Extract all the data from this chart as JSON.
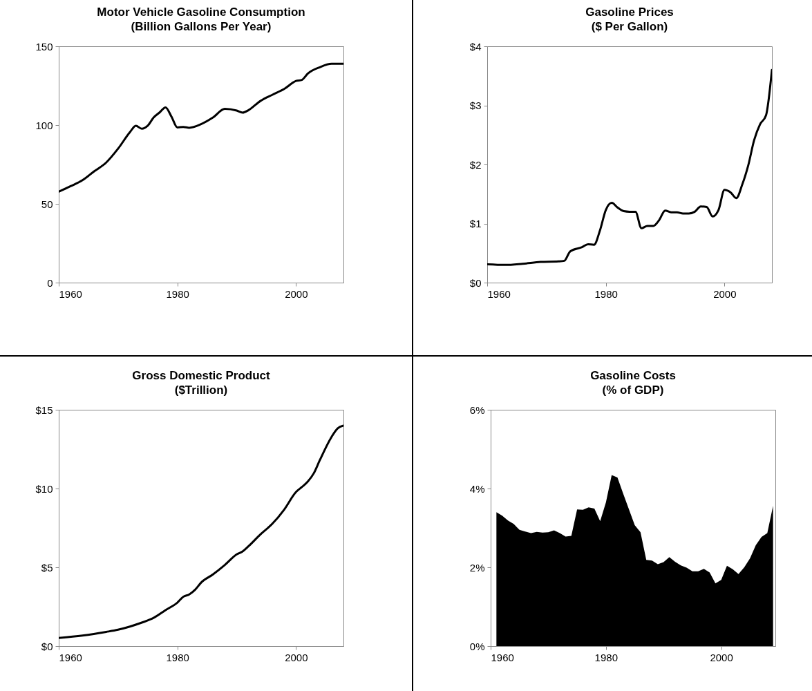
{
  "chart_data": [
    {
      "type": "line",
      "title": "Motor Vehicle Gasoline Consumption",
      "subtitle": "(Billion Gallons Per Year)",
      "xlim": [
        1960,
        2008
      ],
      "xticks": [
        1960,
        1980,
        2000
      ],
      "ylim": [
        0,
        150
      ],
      "yticks": [
        0,
        50,
        100,
        150
      ],
      "grid": false,
      "series": [
        {
          "color": "#000000",
          "x": [
            1960,
            1962,
            1964,
            1966,
            1968,
            1970,
            1972,
            1973,
            1974,
            1975,
            1976,
            1977,
            1978,
            1979,
            1980,
            1981,
            1982,
            1984,
            1986,
            1988,
            1990,
            1991,
            1992,
            1994,
            1996,
            1998,
            2000,
            2001,
            2002,
            2004,
            2006,
            2008
          ],
          "values": [
            57.7,
            61.2,
            65,
            70.7,
            76.2,
            85,
            95.5,
            99.6,
            97.7,
            99.6,
            104.8,
            108,
            111.2,
            105.4,
            98.5,
            98.8,
            98.3,
            100.6,
            104.8,
            110.3,
            109.2,
            107.9,
            109.5,
            115.3,
            119.2,
            122.9,
            128,
            128.7,
            132.7,
            136.7,
            138.9,
            138.9
          ]
        }
      ]
    },
    {
      "type": "line",
      "title": "Gasoline Prices",
      "subtitle": "($ Per Gallon)",
      "xlim": [
        1960,
        2008
      ],
      "xticks": [
        1960,
        1980,
        2000
      ],
      "ylim": [
        0,
        4
      ],
      "yticks": [
        {
          "value": 0,
          "label": "$0"
        },
        {
          "value": 1,
          "label": "$1"
        },
        {
          "value": 2,
          "label": "$2"
        },
        {
          "value": 3,
          "label": "$3"
        },
        {
          "value": 4,
          "label": "$4"
        }
      ],
      "grid": false,
      "series": [
        {
          "color": "#000000",
          "x": [
            1960,
            1963,
            1966,
            1969,
            1972,
            1973,
            1974,
            1976,
            1977,
            1978,
            1979,
            1980,
            1981,
            1982,
            1983,
            1984,
            1985,
            1986,
            1987,
            1988,
            1989,
            1990,
            1991,
            1992,
            1993,
            1994,
            1995,
            1996,
            1997,
            1998,
            1999,
            2000,
            2001,
            2002,
            2003,
            2004,
            2005,
            2006,
            2007,
            2008
          ],
          "values": [
            0.31,
            0.3,
            0.32,
            0.35,
            0.36,
            0.37,
            0.53,
            0.6,
            0.65,
            0.64,
            0.88,
            1.23,
            1.35,
            1.27,
            1.21,
            1.2,
            1.2,
            0.92,
            0.96,
            0.96,
            1.06,
            1.22,
            1.19,
            1.19,
            1.17,
            1.17,
            1.2,
            1.29,
            1.28,
            1.12,
            1.23,
            1.57,
            1.53,
            1.43,
            1.66,
            1.98,
            2.41,
            2.68,
            2.83,
            3.6
          ]
        }
      ]
    },
    {
      "type": "line",
      "title": "Gross Domestic Product",
      "subtitle": "($Trillion)",
      "xlim": [
        1960,
        2008
      ],
      "xticks": [
        1960,
        1980,
        2000
      ],
      "ylim": [
        0,
        15
      ],
      "yticks": [
        {
          "value": 0,
          "label": "$0"
        },
        {
          "value": 5,
          "label": "$5"
        },
        {
          "value": 10,
          "label": "$10"
        },
        {
          "value": 15,
          "label": "$15"
        }
      ],
      "grid": false,
      "series": [
        {
          "color": "#000000",
          "x": [
            1960,
            1964,
            1968,
            1970,
            1972,
            1974,
            1976,
            1978,
            1980,
            1981,
            1982,
            1983,
            1984,
            1986,
            1988,
            1990,
            1991,
            1992,
            1994,
            1996,
            1998,
            2000,
            2001,
            2002,
            2003,
            2004,
            2006,
            2007,
            2008
          ],
          "values": [
            0.52,
            0.67,
            0.9,
            1.04,
            1.24,
            1.49,
            1.79,
            2.28,
            2.76,
            3.13,
            3.28,
            3.58,
            4.03,
            4.55,
            5.15,
            5.82,
            6.01,
            6.34,
            7.09,
            7.76,
            8.66,
            9.78,
            10.1,
            10.45,
            10.97,
            11.79,
            13.28,
            13.81,
            13.99
          ]
        }
      ]
    },
    {
      "type": "area",
      "title": "Gasoline Costs",
      "subtitle": "(% of GDP)",
      "xlim": [
        1960,
        2009.4
      ],
      "xticks": [
        1960,
        1980,
        2000
      ],
      "ylim": [
        0,
        6
      ],
      "yticks": [
        {
          "value": 0,
          "label": "0%"
        },
        {
          "value": 2,
          "label": "2%"
        },
        {
          "value": 4,
          "label": "4%"
        },
        {
          "value": 6,
          "label": "6%"
        }
      ],
      "grid": false,
      "series": [
        {
          "color": "#000000",
          "x": [
            1961,
            1962,
            1963,
            1964,
            1965,
            1966,
            1967,
            1968,
            1969,
            1970,
            1971,
            1972,
            1973,
            1974,
            1975,
            1976,
            1977,
            1978,
            1979,
            1980,
            1981,
            1982,
            1983,
            1984,
            1985,
            1986,
            1987,
            1988,
            1989,
            1990,
            1991,
            1992,
            1993,
            1994,
            1995,
            1996,
            1997,
            1998,
            1999,
            2000,
            2001,
            2002,
            2003,
            2004,
            2005,
            2006,
            2007,
            2008,
            2009
          ],
          "values": [
            3.4,
            3.31,
            3.19,
            3.1,
            2.95,
            2.91,
            2.87,
            2.9,
            2.88,
            2.89,
            2.94,
            2.87,
            2.78,
            2.8,
            3.47,
            3.46,
            3.52,
            3.49,
            3.17,
            3.65,
            4.34,
            4.28,
            3.87,
            3.47,
            3.07,
            2.89,
            2.19,
            2.17,
            2.08,
            2.13,
            2.26,
            2.14,
            2.05,
            1.99,
            1.9,
            1.9,
            1.96,
            1.87,
            1.59,
            1.68,
            2.04,
            1.95,
            1.83,
            2,
            2.23,
            2.56,
            2.77,
            2.87,
            3.56
          ]
        }
      ]
    }
  ]
}
